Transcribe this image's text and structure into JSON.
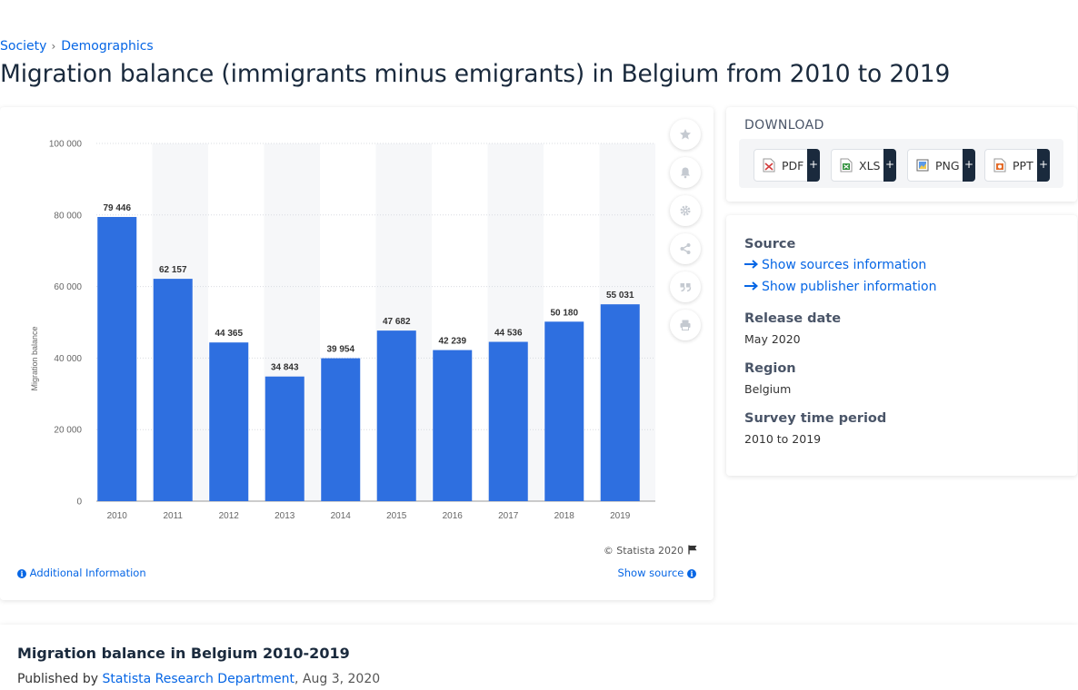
{
  "breadcrumb": {
    "items": [
      "Society",
      "Demographics"
    ],
    "separator": "›"
  },
  "page_title": "Migration balance (immigrants minus emigrants) in Belgium from 2010 to 2019",
  "chart_data": {
    "type": "bar",
    "categories": [
      "2010",
      "2011",
      "2012",
      "2013",
      "2014",
      "2015",
      "2016",
      "2017",
      "2018",
      "2019"
    ],
    "values": [
      79446,
      62157,
      44365,
      34843,
      39954,
      47682,
      42239,
      44536,
      50180,
      55031
    ],
    "data_labels": [
      "79 446",
      "62 157",
      "44 365",
      "34 843",
      "39 954",
      "47 682",
      "42 239",
      "44 536",
      "50 180",
      "55 031"
    ],
    "ylabel": "Migration balance",
    "xlabel": "",
    "ylim": [
      0,
      100000
    ],
    "yticks": [
      0,
      20000,
      40000,
      60000,
      80000,
      100000
    ],
    "ytick_labels": [
      "0",
      "20 000",
      "40 000",
      "60 000",
      "80 000",
      "100 000"
    ],
    "bar_color": "#2e6fe0",
    "band_color": "#f6f7f9",
    "grid": true,
    "legend": false
  },
  "toolbar": {
    "icons": [
      "star-icon",
      "bell-icon",
      "gear-icon",
      "share-icon",
      "quote-icon",
      "print-icon"
    ]
  },
  "chart_footer": {
    "copyright": "© Statista 2020",
    "additional_info": "Additional Information",
    "show_source": "Show source"
  },
  "download": {
    "title": "DOWNLOAD",
    "buttons": [
      {
        "label": "PDF",
        "plus": "+",
        "color": "#d23c3c"
      },
      {
        "label": "XLS",
        "plus": "+",
        "color": "#2f8f3a"
      },
      {
        "label": "PNG",
        "plus": "+",
        "color": "#2e6fe0"
      },
      {
        "label": "PPT",
        "plus": "+",
        "color": "#e46c2a"
      }
    ]
  },
  "meta": {
    "source_heading": "Source",
    "show_sources": "Show sources information",
    "show_publisher": "Show publisher information",
    "release_heading": "Release date",
    "release_value": "May 2020",
    "region_heading": "Region",
    "region_value": "Belgium",
    "survey_heading": "Survey time period",
    "survey_value": "2010 to 2019"
  },
  "bottom": {
    "title": "Migration balance in Belgium 2010-2019",
    "published_prefix": "Published by",
    "publisher": "Statista Research Department",
    "date": ", Aug 3, 2020"
  },
  "colors": {
    "link": "#0666e5",
    "heading": "#1a2a3d",
    "bar": "#2e6fe0"
  }
}
